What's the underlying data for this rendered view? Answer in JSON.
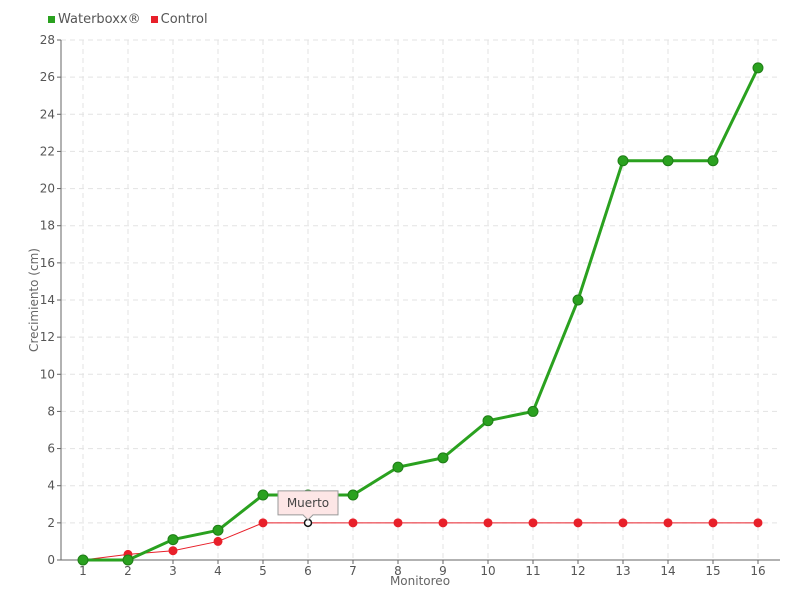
{
  "chart_data": {
    "type": "line",
    "categories": [
      "1",
      "2",
      "3",
      "4",
      "5",
      "6",
      "7",
      "8",
      "9",
      "10",
      "11",
      "12",
      "13",
      "14",
      "15",
      "16"
    ],
    "series": [
      {
        "name": "Waterboxx®",
        "color": "#2aa11f",
        "values": [
          0,
          0,
          1.1,
          1.6,
          3.5,
          3.5,
          3.5,
          5,
          5.5,
          7.5,
          8,
          14,
          21.5,
          21.5,
          21.5,
          26.5
        ]
      },
      {
        "name": "Control",
        "color": "#e8202a",
        "values": [
          0,
          0.3,
          0.5,
          1,
          2,
          2,
          2,
          2,
          2,
          2,
          2,
          2,
          2,
          2,
          2,
          2
        ]
      }
    ],
    "xlabel": "Monitoreo",
    "ylabel": "Crecimiento (cm)",
    "ylim": [
      0,
      28
    ],
    "ystep": 2,
    "grid": true,
    "legend_position": "top-left",
    "annotation": {
      "text": "Muerto",
      "series": "Control",
      "category": "6"
    }
  }
}
